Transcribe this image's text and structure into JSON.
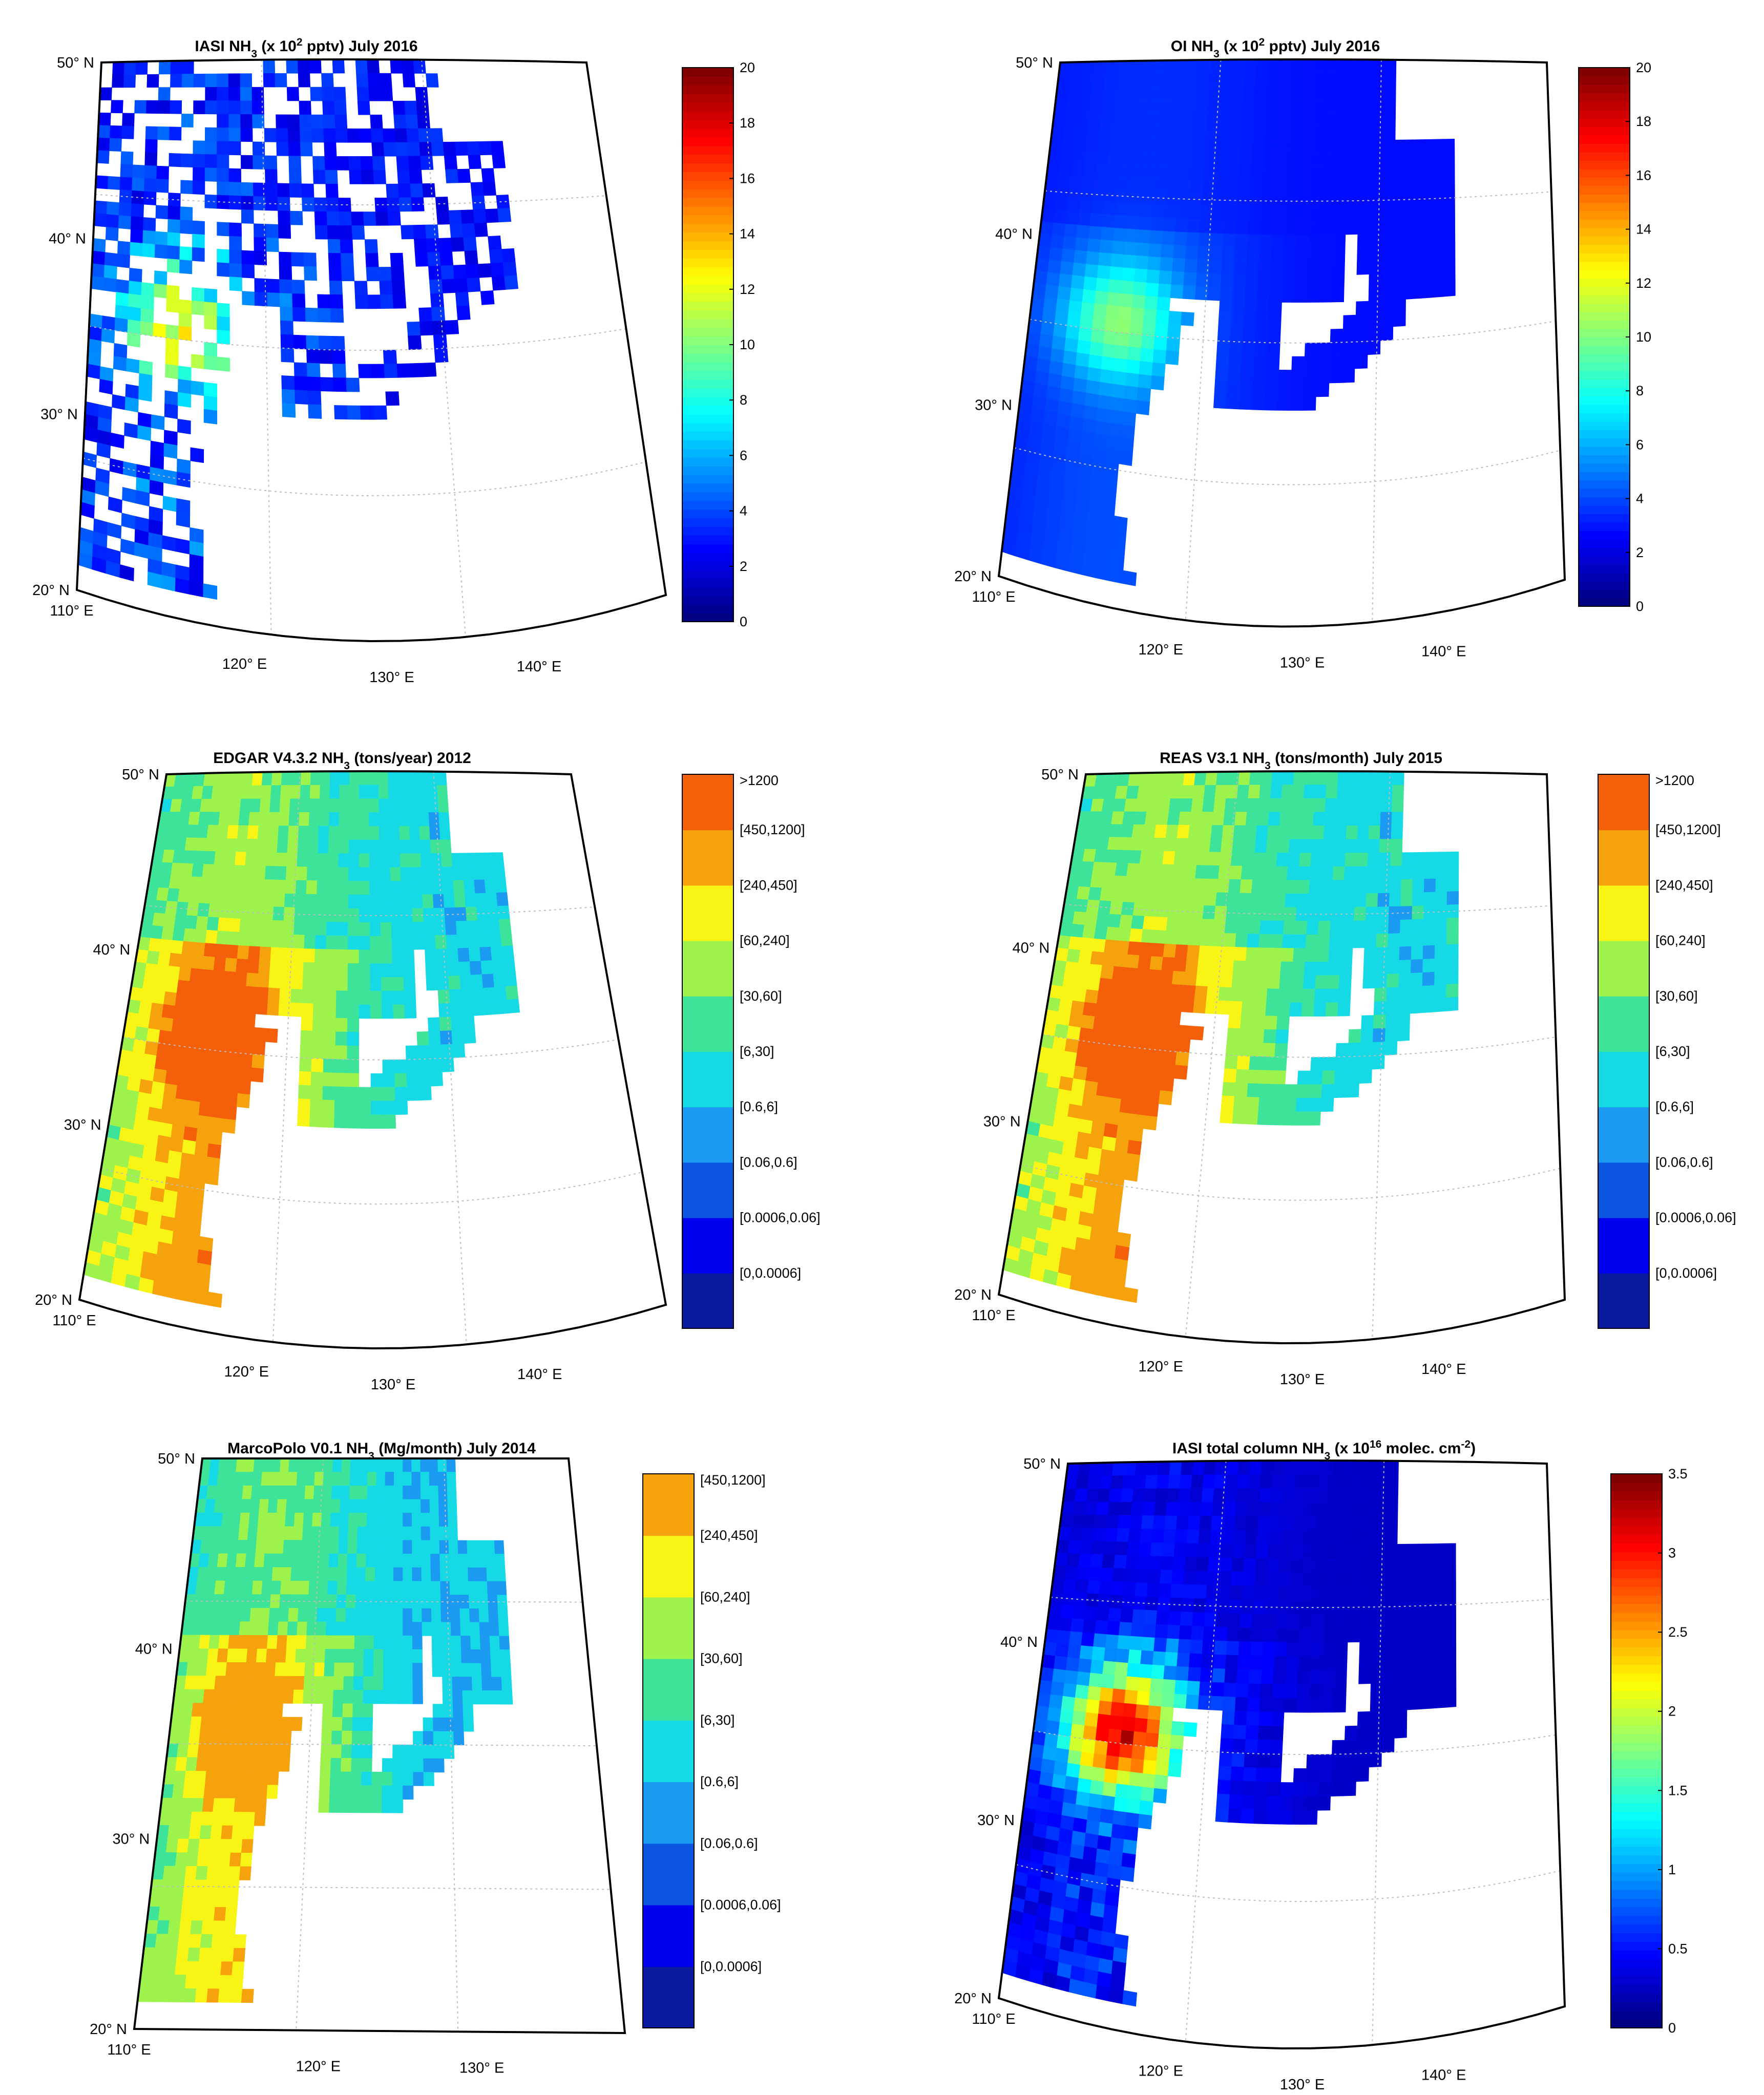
{
  "chart_data": [
    {
      "type": "heatmap",
      "title_parts": [
        "IASI NH",
        "3",
        " (x 10",
        "2",
        " pptv) July 2016"
      ],
      "colorbar_type": "continuous",
      "colormap": "jet",
      "clim": [
        0,
        20
      ],
      "colorbar_ticks": [
        "0",
        "2",
        "4",
        "6",
        "8",
        "10",
        "12",
        "14",
        "16",
        "18",
        "20"
      ],
      "lat_labels": [
        "50",
        "40",
        "30",
        "20"
      ],
      "lon_labels": [
        "110",
        "120",
        "130",
        "140"
      ],
      "field": "sparse_observations",
      "hotspot_value": 14
    },
    {
      "type": "heatmap",
      "title_parts": [
        "OI NH",
        "3",
        " (x 10",
        "2",
        " pptv) July 2016"
      ],
      "colorbar_type": "continuous",
      "colormap": "jet",
      "clim": [
        0,
        20
      ],
      "colorbar_ticks": [
        "0",
        "2",
        "4",
        "6",
        "8",
        "10",
        "12",
        "14",
        "16",
        "18",
        "20"
      ],
      "lat_labels": [
        "50",
        "40",
        "30",
        "20"
      ],
      "lon_labels": [
        "110",
        "120",
        "130",
        "140"
      ],
      "field": "smooth_interpolated",
      "hotspot_value": 10
    },
    {
      "type": "heatmap",
      "title_parts": [
        "EDGAR V4.3.2 NH",
        "3",
        " (tons/year) 2012"
      ],
      "colorbar_type": "categorical",
      "colorbar_categories": [
        "[0,0.0006]",
        "[0.0006,0.06]",
        "[0.06,0.6]",
        "[0.6,6]",
        "[6,30]",
        "[30,60]",
        "[60,240]",
        "[240,450]",
        "[450,1200]",
        ">1200"
      ],
      "category_colors": [
        "#0a1a9e",
        "#0000ee",
        "#0b55e0",
        "#1a9af0",
        "#16d9e6",
        "#3ee39a",
        "#9ef24c",
        "#f8f516",
        "#f5a20d",
        "#f45f0a"
      ],
      "lat_labels": [
        "50",
        "40",
        "30",
        "20"
      ],
      "lon_labels": [
        "110",
        "120",
        "130",
        "140"
      ],
      "field": "emission_inventory_edgar"
    },
    {
      "type": "heatmap",
      "title_parts": [
        "REAS V3.1 NH",
        "3",
        " (tons/month) July 2015"
      ],
      "colorbar_type": "categorical",
      "colorbar_categories": [
        "[0,0.0006]",
        "[0.0006,0.06]",
        "[0.06,0.6]",
        "[0.6,6]",
        "[6,30]",
        "[30,60]",
        "[60,240]",
        "[240,450]",
        "[450,1200]",
        ">1200"
      ],
      "category_colors": [
        "#0a1a9e",
        "#0000ee",
        "#0b55e0",
        "#1a9af0",
        "#16d9e6",
        "#3ee39a",
        "#9ef24c",
        "#f8f516",
        "#f5a20d",
        "#f45f0a"
      ],
      "lat_labels": [
        "50",
        "40",
        "30",
        "20"
      ],
      "lon_labels": [
        "110",
        "120",
        "130",
        "140"
      ],
      "field": "emission_inventory_reas"
    },
    {
      "type": "heatmap",
      "title_parts": [
        "MarcoPolo V0.1 NH",
        "3",
        " (Mg/month) July 2014"
      ],
      "colorbar_type": "categorical",
      "colorbar_categories": [
        "[0,0.0006]",
        "[0.0006,0.06]",
        "[0.06,0.6]",
        "[0.6,6]",
        "[6,30]",
        "[30,60]",
        "[60,240]",
        "[240,450]",
        "[450,1200]"
      ],
      "category_colors": [
        "#0a1a9e",
        "#0000ee",
        "#0b55e0",
        "#1a9af0",
        "#16d9e6",
        "#3ee39a",
        "#9ef24c",
        "#f8f516",
        "#f5a20d"
      ],
      "lat_labels": [
        "50",
        "40",
        "30",
        "20"
      ],
      "lon_labels": [
        "110",
        "120",
        "130"
      ],
      "field": "emission_inventory_marcopolo"
    },
    {
      "type": "heatmap",
      "title_parts": [
        "IASI total column NH",
        "3",
        " (x 10",
        "16",
        " molec. cm",
        "-2",
        ")"
      ],
      "colorbar_type": "continuous",
      "colormap": "jet",
      "clim": [
        0,
        3.5
      ],
      "colorbar_ticks": [
        "0",
        "0.5",
        "1",
        "1.5",
        "2",
        "2.5",
        "3",
        "3.5"
      ],
      "lat_labels": [
        "50",
        "40",
        "30",
        "20"
      ],
      "lon_labels": [
        "110",
        "120",
        "130",
        "140"
      ],
      "field": "total_column",
      "hotspot_value": 3.0
    }
  ]
}
